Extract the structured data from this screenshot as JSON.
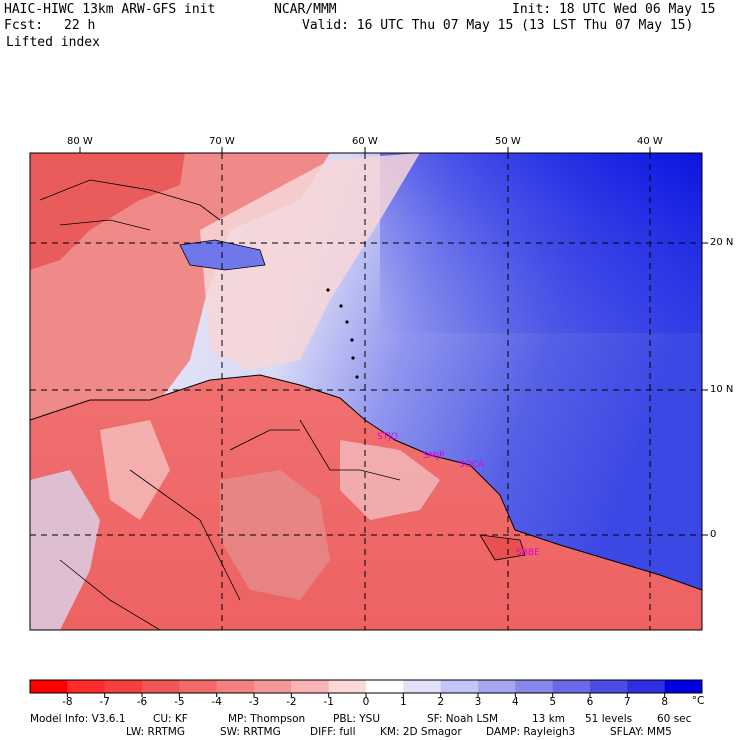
{
  "header": {
    "model": "HAIC-HIWC 13km ARW-GFS init",
    "org": "NCAR/MMM",
    "init": "Init: 18 UTC Wed 06 May 15",
    "fcst_label": "Fcst:",
    "fcst_value": "22 h",
    "valid": "Valid: 16 UTC Thu 07 May 15 (13 LST Thu 07 May 15)",
    "field": "Lifted index"
  },
  "map": {
    "lon_labels": [
      "80 W",
      "70 W",
      "60 W",
      "50 W",
      "40 W"
    ],
    "lat_labels": [
      "20 N",
      "10 N",
      "0"
    ],
    "stations": [
      "STJO",
      "SMJP",
      "SOCA",
      "SBBE"
    ],
    "colors": {
      "very_unstable": "#e8363c",
      "unstable": "#f27a78",
      "neutral": "#ffffff",
      "stable": "#8a90f0",
      "very_stable": "#1010e8"
    }
  },
  "colorbar": {
    "ticks": [
      "-8",
      "-7",
      "-6",
      "-5",
      "-4",
      "-3",
      "-2",
      "-1",
      "0",
      "1",
      "2",
      "3",
      "4",
      "5",
      "6",
      "7",
      "8"
    ],
    "unit": "°C",
    "colors": [
      "#ff0000",
      "#ff2a2a",
      "#f43f3f",
      "#f25555",
      "#f26a6a",
      "#f48080",
      "#f69898",
      "#f9b5b5",
      "#fcd8d8",
      "#ffffff",
      "#e2e2fb",
      "#c4c4f6",
      "#a6a6f1",
      "#8888ec",
      "#6a6ae8",
      "#4c4ce4",
      "#2e2ee2",
      "#0000e0"
    ]
  },
  "footer": {
    "line1": [
      "Model Info: V3.6.1",
      "CU: KF",
      "MP: Thompson",
      "PBL: YSU",
      "SF: Noah LSM",
      "13 km",
      "51 levels",
      "60 sec"
    ],
    "line2": [
      "LW: RRTMG",
      "SW: RRTMG",
      "DIFF: full",
      "KM: 2D Smagor",
      "DAMP: Rayleigh3",
      "SFLAY: MM5"
    ]
  }
}
